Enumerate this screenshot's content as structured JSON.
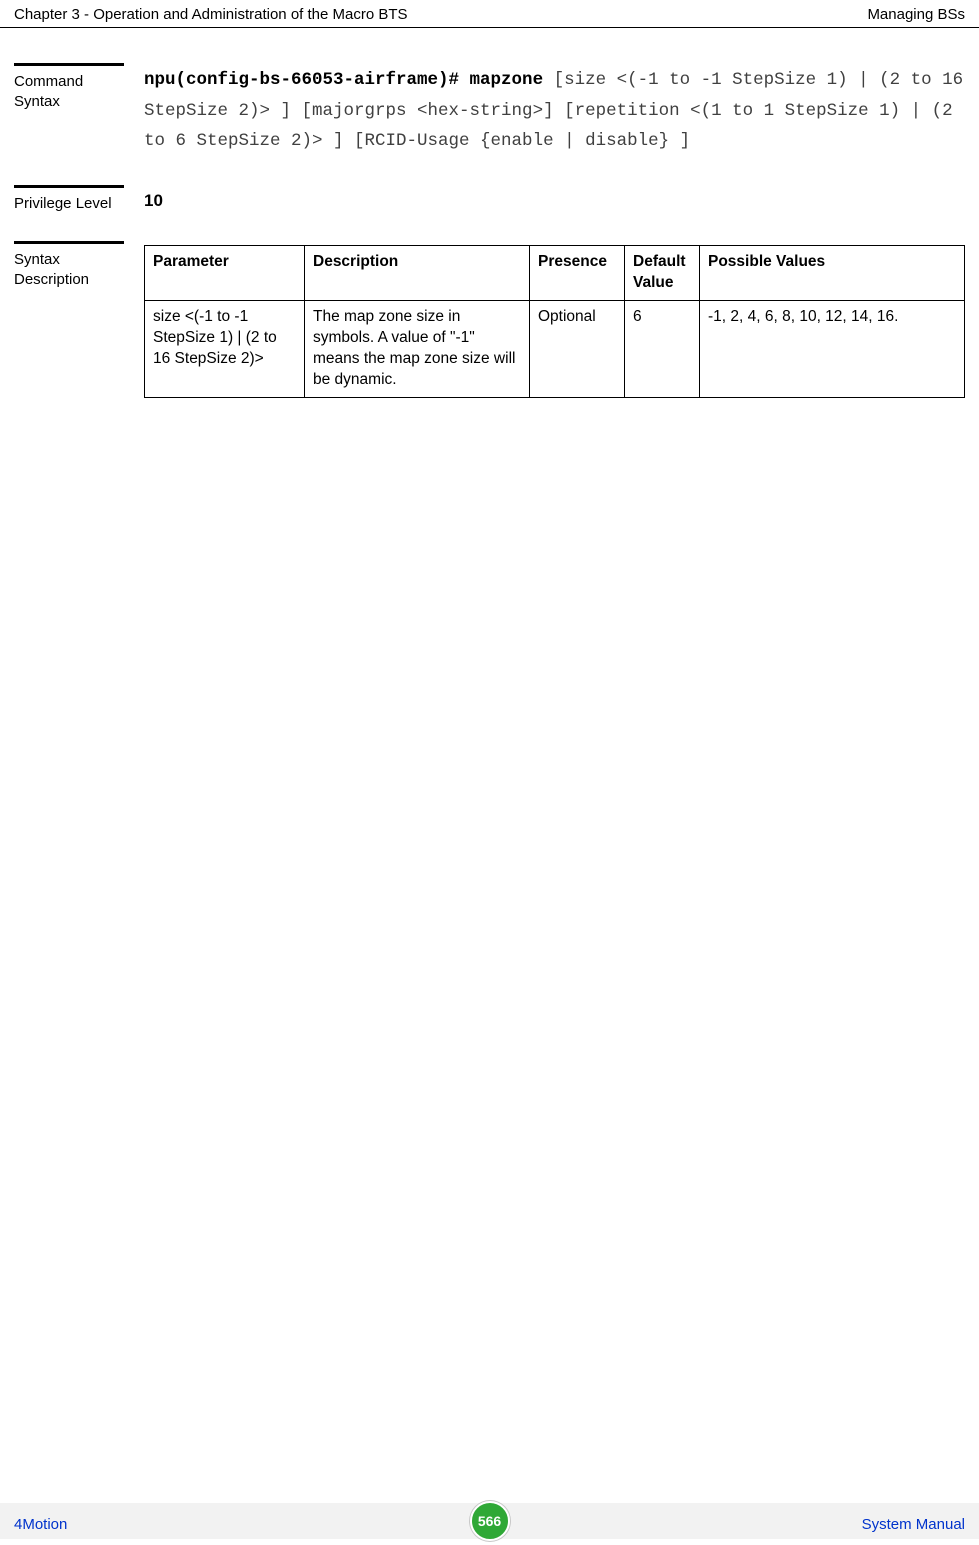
{
  "header": {
    "left": "Chapter 3 - Operation and Administration of the Macro BTS",
    "right": "Managing BSs"
  },
  "sections": {
    "command_syntax": {
      "label": "Command Syntax",
      "prefix_bold": "npu(config-bs-66053-airframe)# mapzone",
      "body_plain": " [size <(-1 to -1 StepSize 1) | (2 to 16 StepSize 2)> ] [majorgrps <hex-string>] [repetition <(1 to 1 StepSize 1) | (2 to 6 StepSize 2)> ] [RCID-Usage {enable | disable} ]"
    },
    "privilege_level": {
      "label": "Privilege Level",
      "value": "10"
    },
    "syntax_description": {
      "label": "Syntax Description",
      "columns": [
        "Parameter",
        "Description",
        "Presence",
        "Default Value",
        "Possible Values"
      ],
      "rows": [
        {
          "parameter": "size <(-1 to -1 StepSize 1) | (2 to 16 StepSize 2)>",
          "description": "The map zone size in symbols. A value of \"-1\" means the map zone size will be dynamic.",
          "presence": "Optional",
          "default_value": "6",
          "possible_values": "-1, 2, 4, 6, 8, 10, 12, 14, 16."
        }
      ]
    }
  },
  "footer": {
    "left": "4Motion",
    "page": "566",
    "right": "System Manual"
  },
  "colors": {
    "link_blue": "#0033cc",
    "badge_green": "#2fa836",
    "footer_bg": "#f2f2f2"
  }
}
